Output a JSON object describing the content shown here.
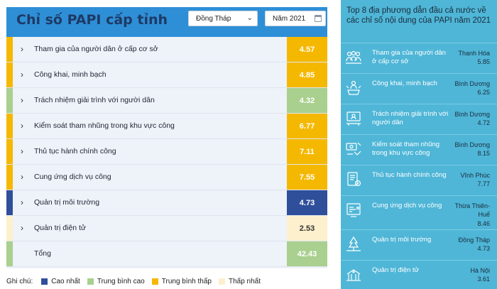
{
  "left": {
    "title": "Chỉ số PAPI cấp tỉnh",
    "province_select": "Đồng Tháp",
    "year_select": "Năm 2021",
    "rows": [
      {
        "label": "Tham gia của người dân ở cấp cơ sở",
        "value": "4.57",
        "color": "#f5b800",
        "level": "Trung bình thấp",
        "expandable": true
      },
      {
        "label": "Công khai, minh bạch",
        "value": "4.85",
        "color": "#f5b800",
        "level": "Trung bình thấp",
        "expandable": true
      },
      {
        "label": "Trách nhiệm giải trình với người dân",
        "value": "4.32",
        "color": "#a9d08e",
        "level": "Trung bình cao",
        "expandable": true
      },
      {
        "label": "Kiểm soát tham nhũng trong khu vực công",
        "value": "6.77",
        "color": "#f5b800",
        "level": "Trung bình thấp",
        "expandable": true
      },
      {
        "label": "Thủ tục hành chính công",
        "value": "7.11",
        "color": "#f5b800",
        "level": "Trung bình thấp",
        "expandable": true
      },
      {
        "label": "Cung ứng dịch vụ công",
        "value": "7.55",
        "color": "#f5b800",
        "level": "Trung bình thấp",
        "expandable": true
      },
      {
        "label": "Quản trị môi trường",
        "value": "4.73",
        "color": "#2f4f9a",
        "level": "Cao nhất",
        "expandable": true
      },
      {
        "label": "Quản trị điện tử",
        "value": "2.53",
        "color": "#fdf0cc",
        "level": "Thấp nhất",
        "expandable": true
      },
      {
        "label": "Tổng",
        "value": "42.43",
        "color": "#a9d08e",
        "level": "Trung bình cao",
        "expandable": false
      }
    ]
  },
  "legend": {
    "title": "Ghi chú:",
    "items": [
      {
        "label": "Cao nhất",
        "color": "#2f4f9a"
      },
      {
        "label": "Trung bình cao",
        "color": "#a9d08e"
      },
      {
        "label": "Trung bình thấp",
        "color": "#f5b800"
      },
      {
        "label": "Thấp nhất",
        "color": "#fdf0cc"
      }
    ]
  },
  "right": {
    "title": "Top 8 địa phương dẫn đầu cả nước về các chỉ số nội dung của PAPI năm 2021",
    "items": [
      {
        "label": "Tham gia của người dân ở cấp cơ sở",
        "province": "Thanh Hóa",
        "score": "5.85",
        "icon": "people-vote-icon"
      },
      {
        "label": "Công khai, minh bạch",
        "province": "Bình Dương",
        "score": "6.25",
        "icon": "transparency-icon"
      },
      {
        "label": "Trách nhiệm giải trình với người dân",
        "province": "Bình Dương",
        "score": "4.72",
        "icon": "accountability-icon"
      },
      {
        "label": "Kiểm soát tham nhũng trong khu vực công",
        "province": "Bình Dương",
        "score": "8.15",
        "icon": "anti-corruption-icon"
      },
      {
        "label": "Thủ tục hành chính công",
        "province": "Vĩnh Phúc",
        "score": "7.77",
        "icon": "admin-procedure-icon"
      },
      {
        "label": "Cung ứng dịch vụ công",
        "province": "Thừa Thiên-Huế",
        "score": "8.46",
        "icon": "public-service-icon"
      },
      {
        "label": "Quản trị môi trường",
        "province": "Đồng Tháp",
        "score": "4.73",
        "icon": "environment-icon"
      },
      {
        "label": "Quản trị điện tử",
        "province": "Hà Nội",
        "score": "3.61",
        "icon": "e-governance-icon"
      }
    ]
  }
}
